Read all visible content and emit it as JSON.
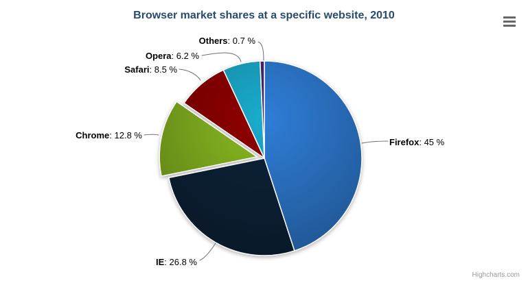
{
  "credits": {
    "label": "Highcharts.com"
  },
  "icons": {
    "export_menu": "hamburger-icon"
  },
  "chart_data": {
    "type": "pie",
    "title": "Browser market shares at a specific website, 2010",
    "title_color": "#274b6d",
    "legend": "none",
    "label_format": "{name}: {value} %",
    "connector_color": "#6e6e6e",
    "border_color": "#ffffff",
    "points": [
      {
        "name": "Firefox",
        "value": 45,
        "display": "45 %",
        "color": "#2f7ed8",
        "sliced": false
      },
      {
        "name": "IE",
        "value": 26.8,
        "display": "26.8 %",
        "color": "#0d233a",
        "sliced": false
      },
      {
        "name": "Chrome",
        "value": 12.8,
        "display": "12.8 %",
        "color": "#8bbc21",
        "sliced": true
      },
      {
        "name": "Safari",
        "value": 8.5,
        "display": "8.5 %",
        "color": "#910000",
        "sliced": false
      },
      {
        "name": "Opera",
        "value": 6.2,
        "display": "6.2 %",
        "color": "#1aadce",
        "sliced": false
      },
      {
        "name": "Others",
        "value": 0.7,
        "display": "0.7 %",
        "color": "#492970",
        "sliced": false
      }
    ]
  }
}
